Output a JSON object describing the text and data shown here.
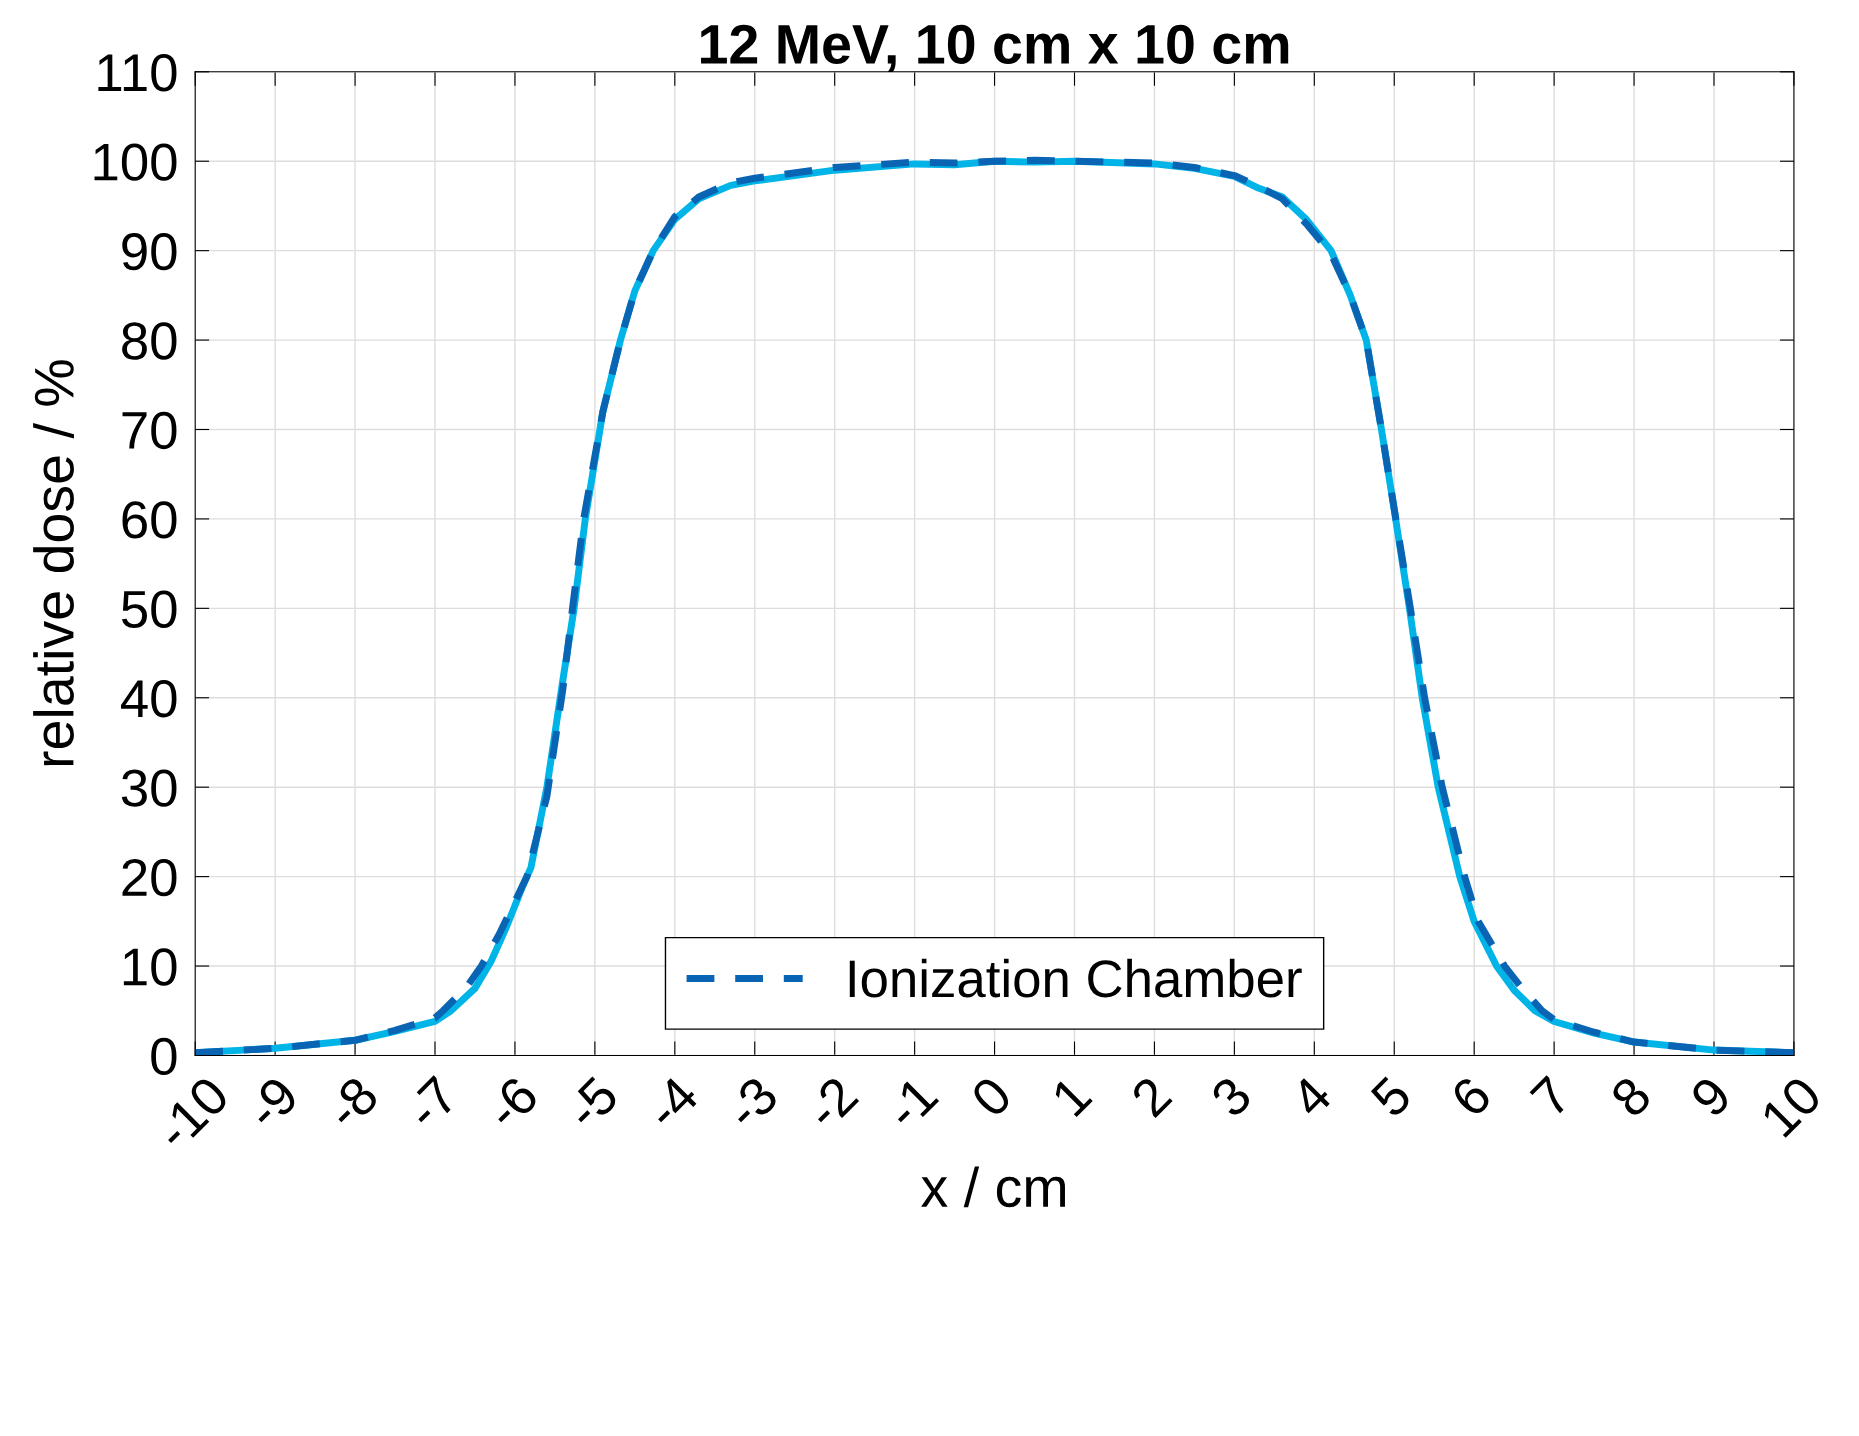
{
  "chart_data": {
    "type": "line",
    "title": "12 MeV, 10 cm x 10 cm",
    "xlabel": "x / cm",
    "ylabel": "relative dose / %",
    "xlim": [
      -10,
      10
    ],
    "xticks": [
      -10,
      -9,
      -8,
      -7,
      -6,
      -5,
      -4,
      -3,
      -2,
      -1,
      0,
      1,
      2,
      3,
      4,
      5,
      6,
      7,
      8,
      9,
      10
    ],
    "ylim": [
      0,
      110
    ],
    "yticks": [
      0,
      10,
      20,
      30,
      40,
      50,
      60,
      70,
      80,
      90,
      100,
      110
    ],
    "grid": true,
    "legend": "bottom",
    "series": [
      {
        "color": "#00b4e8",
        "line_style": "solid",
        "x": [
          -10,
          -9,
          -8,
          -7.5,
          -7,
          -6.8,
          -6.5,
          -6.3,
          -6.1,
          -5.9,
          -5.8,
          -5.6,
          -5.4,
          -5.26,
          -5.12,
          -4.9,
          -4.68,
          -4.5,
          -4.27,
          -4,
          -3.7,
          -3.3,
          -3,
          -2,
          -1,
          -0.5,
          0,
          0.5,
          1,
          2,
          2.5,
          3,
          3.3,
          3.6,
          3.9,
          4.21,
          4.45,
          4.65,
          4.84,
          5.0,
          5.19,
          5.35,
          5.55,
          5.82,
          6.0,
          6.28,
          6.5,
          6.76,
          7,
          7.5,
          8,
          9,
          10
        ],
        "values": [
          0.3,
          0.8,
          1.7,
          2.7,
          3.8,
          5,
          7.5,
          10.5,
          14.5,
          19,
          21,
          30,
          42,
          50,
          60,
          72,
          80,
          85.5,
          90,
          93.5,
          95.8,
          97.3,
          97.8,
          99,
          99.7,
          99.6,
          100,
          99.9,
          100,
          99.7,
          99.2,
          98.3,
          97,
          96,
          93.5,
          90,
          85,
          80,
          70,
          61,
          50,
          40,
          30,
          20,
          15,
          10,
          7.3,
          5,
          3.8,
          2.5,
          1.5,
          0.6,
          0.3
        ]
      },
      {
        "name": "Ionization Chamber",
        "color": "#0a64b4",
        "line_style": "dashed",
        "x": [
          -10,
          -9,
          -8,
          -7.5,
          -7,
          -6.9,
          -6.6,
          -6.42,
          -6.2,
          -5.85,
          -5.6,
          -5.4,
          -5.28,
          -5.14,
          -4.9,
          -4.68,
          -4.5,
          -4.27,
          -4,
          -3.7,
          -3.3,
          -3,
          -2,
          -1,
          -0.5,
          0,
          0.5,
          1,
          2,
          2.5,
          3,
          3.3,
          3.6,
          3.9,
          4.2,
          4.45,
          4.65,
          4.84,
          5.02,
          5.22,
          5.38,
          5.6,
          5.88,
          6.05,
          6.38,
          6.6,
          6.85,
          7,
          7.5,
          8,
          9,
          10
        ],
        "values": [
          0.3,
          0.8,
          1.7,
          2.8,
          4.2,
          5,
          7.7,
          10,
          13.5,
          20,
          29,
          41,
          50,
          60,
          72,
          80,
          85.5,
          90,
          93.8,
          96,
          97.6,
          98.1,
          99.3,
          99.9,
          99.8,
          100,
          100.1,
          100,
          99.8,
          99.3,
          98.4,
          97.2,
          95.8,
          93,
          89.8,
          85,
          80,
          70,
          60,
          49,
          40,
          30,
          20,
          15,
          10,
          7.5,
          5,
          4,
          2.6,
          1.5,
          0.6,
          0.3
        ]
      }
    ]
  }
}
